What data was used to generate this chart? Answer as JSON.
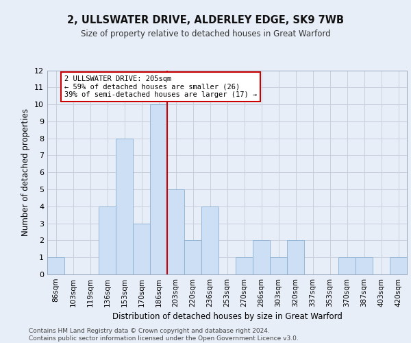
{
  "title1": "2, ULLSWATER DRIVE, ALDERLEY EDGE, SK9 7WB",
  "title2": "Size of property relative to detached houses in Great Warford",
  "xlabel": "Distribution of detached houses by size in Great Warford",
  "ylabel": "Number of detached properties",
  "categories": [
    "86sqm",
    "103sqm",
    "119sqm",
    "136sqm",
    "153sqm",
    "170sqm",
    "186sqm",
    "203sqm",
    "220sqm",
    "236sqm",
    "253sqm",
    "270sqm",
    "286sqm",
    "303sqm",
    "320sqm",
    "337sqm",
    "353sqm",
    "370sqm",
    "387sqm",
    "403sqm",
    "420sqm"
  ],
  "values": [
    1,
    0,
    0,
    4,
    8,
    3,
    10,
    5,
    2,
    4,
    0,
    1,
    2,
    1,
    2,
    0,
    0,
    1,
    1,
    0,
    1
  ],
  "bar_color": "#ccdff5",
  "bar_edgecolor": "#8ab0d0",
  "grid_color": "#c8d0de",
  "redline_color": "#cc0000",
  "annotation_text": "2 ULLSWATER DRIVE: 205sqm\n← 59% of detached houses are smaller (26)\n39% of semi-detached houses are larger (17) →",
  "annotation_box_edgecolor": "#cc0000",
  "annotation_box_facecolor": "#ffffff",
  "ylim": [
    0,
    12
  ],
  "yticks": [
    0,
    1,
    2,
    3,
    4,
    5,
    6,
    7,
    8,
    9,
    10,
    11,
    12
  ],
  "footer": "Contains HM Land Registry data © Crown copyright and database right 2024.\nContains public sector information licensed under the Open Government Licence v3.0.",
  "bg_color": "#e8eef8",
  "plot_bg_color": "#e8eef8",
  "title1_fontsize": 10.5,
  "title2_fontsize": 8.5
}
